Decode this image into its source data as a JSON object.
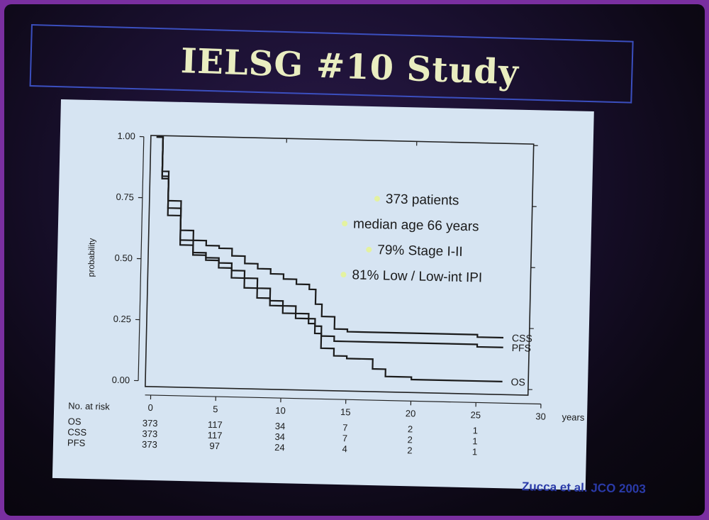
{
  "slide": {
    "title": "IELSG #10 Study",
    "citation": "Zucca et al. JCO 2003",
    "colors": {
      "background": "#07050b",
      "frame": "#7a2fa0",
      "title": "#e9edc0",
      "title_box": "#3b4fbf",
      "panel": "#d6e4f2",
      "citation": "#2a3aa8",
      "bullet": "#e4f2a0"
    }
  },
  "chart_data": {
    "type": "line",
    "title": "",
    "xlabel": "years",
    "ylabel": "probability",
    "xlim": [
      0,
      30
    ],
    "ylim": [
      0,
      1
    ],
    "x_ticks": [
      "0",
      "5",
      "10",
      "15",
      "20",
      "25",
      "30"
    ],
    "y_ticks": [
      "0.00",
      "0.25",
      "0.50",
      "0.75",
      "1.00"
    ],
    "series": [
      {
        "name": "CSS",
        "x": [
          0,
          0.5,
          1,
          2,
          3,
          4,
          5,
          6,
          7,
          8,
          9,
          10,
          11,
          12,
          12.5,
          13,
          14,
          15,
          20,
          25,
          27
        ],
        "y": [
          1.0,
          0.86,
          0.74,
          0.62,
          0.58,
          0.56,
          0.55,
          0.52,
          0.49,
          0.47,
          0.45,
          0.43,
          0.41,
          0.39,
          0.33,
          0.28,
          0.23,
          0.22,
          0.22,
          0.21,
          0.21
        ]
      },
      {
        "name": "PFS",
        "x": [
          0,
          0.5,
          1,
          2,
          3,
          4,
          5,
          6,
          7,
          8,
          9,
          10,
          11,
          12,
          12.5,
          13,
          14,
          15,
          20,
          25,
          27
        ],
        "y": [
          1.0,
          0.83,
          0.68,
          0.56,
          0.52,
          0.51,
          0.49,
          0.46,
          0.43,
          0.39,
          0.34,
          0.32,
          0.29,
          0.27,
          0.24,
          0.2,
          0.18,
          0.18,
          0.18,
          0.17,
          0.17
        ]
      },
      {
        "name": "OS",
        "x": [
          0,
          0.5,
          1,
          2,
          3,
          4,
          5,
          6,
          7,
          8,
          9,
          10,
          11,
          12,
          12.5,
          13,
          14,
          15,
          17,
          18,
          19,
          20,
          25,
          27
        ],
        "y": [
          1.0,
          0.84,
          0.71,
          0.58,
          0.53,
          0.5,
          0.47,
          0.43,
          0.39,
          0.35,
          0.32,
          0.29,
          0.27,
          0.25,
          0.21,
          0.15,
          0.12,
          0.11,
          0.07,
          0.04,
          0.04,
          0.03,
          0.03,
          0.03
        ]
      }
    ],
    "annotations": [
      "373 patients",
      "median age 66 years",
      "79% Stage I-II",
      "81% Low / Low-int IPI"
    ],
    "risk_table": {
      "header": "No. at risk",
      "rows": [
        {
          "label": "OS",
          "values": [
            "373",
            "117",
            "34",
            "7",
            "2",
            "1"
          ]
        },
        {
          "label": "CSS",
          "values": [
            "373",
            "117",
            "34",
            "7",
            "2",
            "1"
          ]
        },
        {
          "label": "PFS",
          "values": [
            "373",
            "97",
            "24",
            "4",
            "2",
            "1"
          ]
        }
      ]
    }
  }
}
